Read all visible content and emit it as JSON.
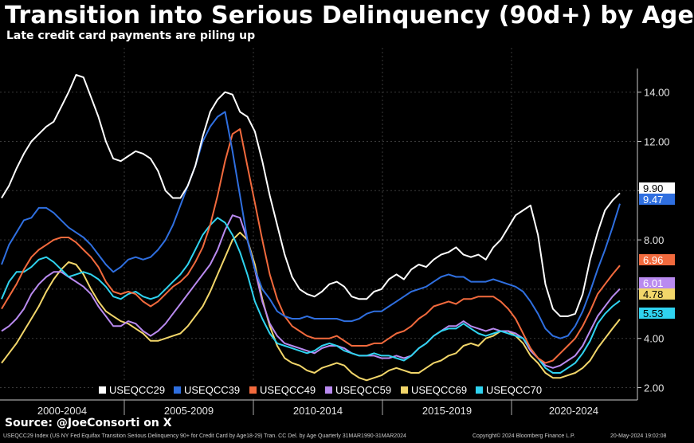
{
  "title": "Transition into Serious Delinquency (90d+) by Age",
  "subtitle": "Late credit card payments are piling up",
  "source": "Source: @JoeConsorti on X",
  "footer": {
    "left": "USEQCC29 Index (US NY Fed Equifax Transition Serious Delinquency 90+ for Credit Card by Age18-29) Tran. CC Del. by Age  Quarterly 31MAR1990-31MAR2024",
    "mid": "Copyright© 2024 Bloomberg Finance L.P.",
    "right": "20-May-2024 19:02:08"
  },
  "colors": {
    "background": "#000000",
    "grid": "#3a3a3a",
    "USEQCC29": "#ffffff",
    "USEQCC39": "#2f6fe0",
    "USEQCC49": "#f26a3d",
    "USEQCC59": "#b98af0",
    "USEQCC69": "#f2d66a",
    "USEQCC70": "#2fd3f0"
  },
  "chart_data": {
    "type": "line",
    "title": "Transition into Serious Delinquency (90d+) by Age",
    "subtitle": "Late credit card payments are piling up",
    "x_period_labels": [
      "2000-2004",
      "2005-2009",
      "2010-2014",
      "2015-2019",
      "2020-2024"
    ],
    "x_range": [
      "2000-Q1",
      "2024-Q1"
    ],
    "ylim": [
      1.5,
      15.8
    ],
    "y_ticks": [
      "2.00",
      "4.00",
      "6.00",
      "8.00",
      "10.00",
      "12.00",
      "14.00"
    ],
    "y_tick_values": [
      2,
      4,
      6,
      8,
      10,
      12,
      14
    ],
    "grid": true,
    "legend_position": "bottom",
    "last_values": [
      "9.90",
      "9.47",
      "6.96",
      "6.01",
      "5.53",
      "4.78"
    ],
    "series": [
      {
        "name": "USEQCC29",
        "last_label": "9.90",
        "x_quarter_step": 1,
        "values": [
          9.7,
          10.2,
          10.9,
          11.5,
          12.0,
          12.3,
          12.6,
          12.8,
          13.4,
          14.0,
          14.7,
          14.6,
          13.8,
          13.0,
          12.0,
          11.3,
          11.2,
          11.4,
          11.6,
          11.5,
          11.3,
          10.8,
          10.0,
          9.7,
          9.7,
          10.2,
          11.0,
          12.2,
          13.2,
          13.7,
          14.0,
          13.9,
          13.2,
          13.0,
          12.4,
          11.2,
          9.8,
          8.6,
          7.4,
          6.5,
          6.0,
          5.8,
          5.7,
          5.9,
          6.2,
          6.3,
          6.1,
          5.7,
          5.6,
          5.6,
          5.9,
          6.0,
          6.4,
          6.6,
          6.4,
          6.8,
          7.0,
          6.9,
          7.2,
          7.4,
          7.5,
          7.7,
          7.4,
          7.3,
          7.4,
          7.2,
          7.7,
          8.0,
          8.5,
          9.0,
          9.2,
          9.4,
          8.2,
          6.2,
          5.2,
          4.9,
          4.9,
          5.0,
          5.8,
          7.2,
          8.3,
          9.2,
          9.6,
          9.9
        ]
      },
      {
        "name": "USEQCC39",
        "last_label": "9.47",
        "x_quarter_step": 1,
        "values": [
          7.0,
          7.8,
          8.3,
          8.8,
          8.9,
          9.3,
          9.3,
          9.1,
          8.8,
          8.5,
          8.3,
          8.1,
          7.8,
          7.4,
          7.0,
          6.7,
          6.9,
          7.2,
          7.3,
          7.2,
          7.3,
          7.6,
          8.0,
          8.6,
          9.4,
          10.2,
          11.0,
          12.0,
          12.6,
          13.0,
          13.2,
          11.6,
          9.8,
          8.0,
          6.8,
          6.0,
          5.6,
          5.1,
          4.9,
          4.8,
          4.8,
          4.9,
          4.8,
          4.8,
          4.8,
          4.8,
          4.7,
          4.7,
          4.8,
          5.0,
          5.1,
          5.1,
          5.3,
          5.5,
          5.7,
          5.9,
          6.0,
          6.1,
          6.3,
          6.5,
          6.6,
          6.5,
          6.5,
          6.3,
          6.3,
          6.3,
          6.4,
          6.3,
          6.2,
          6.1,
          5.9,
          5.5,
          5.0,
          4.4,
          4.1,
          4.0,
          4.1,
          4.5,
          5.1,
          5.9,
          6.8,
          7.6,
          8.5,
          9.47
        ]
      },
      {
        "name": "USEQCC49",
        "last_label": "6.96",
        "x_quarter_step": 1,
        "values": [
          5.2,
          5.7,
          6.2,
          6.8,
          7.3,
          7.6,
          7.8,
          8.0,
          8.1,
          8.1,
          7.9,
          7.6,
          7.3,
          6.9,
          6.3,
          5.9,
          5.8,
          5.9,
          5.8,
          5.5,
          5.3,
          5.5,
          5.8,
          6.1,
          6.3,
          6.6,
          7.1,
          7.7,
          8.6,
          9.8,
          11.2,
          12.3,
          12.5,
          11.0,
          9.5,
          8.0,
          6.6,
          5.6,
          4.9,
          4.5,
          4.3,
          4.1,
          4.0,
          4.0,
          4.0,
          4.1,
          3.9,
          3.7,
          3.7,
          3.7,
          3.8,
          3.8,
          4.0,
          4.2,
          4.3,
          4.5,
          4.8,
          5.0,
          5.3,
          5.4,
          5.5,
          5.4,
          5.6,
          5.6,
          5.7,
          5.7,
          5.7,
          5.5,
          5.2,
          4.8,
          4.2,
          3.6,
          3.2,
          3.0,
          3.1,
          3.4,
          3.7,
          4.0,
          4.5,
          5.1,
          5.8,
          6.2,
          6.6,
          6.96
        ]
      },
      {
        "name": "USEQCC59",
        "last_label": "6.01",
        "x_quarter_step": 1,
        "values": [
          4.3,
          4.5,
          4.8,
          5.2,
          5.8,
          6.2,
          6.5,
          6.7,
          6.7,
          6.5,
          6.3,
          6.1,
          5.8,
          5.3,
          4.9,
          4.5,
          4.5,
          4.7,
          4.6,
          4.3,
          4.1,
          4.3,
          4.6,
          5.0,
          5.4,
          5.8,
          6.2,
          6.6,
          7.0,
          7.6,
          8.4,
          9.0,
          8.9,
          8.0,
          6.8,
          5.5,
          4.6,
          4.1,
          3.8,
          3.7,
          3.6,
          3.5,
          3.4,
          3.6,
          3.7,
          3.7,
          3.6,
          3.4,
          3.3,
          3.3,
          3.3,
          3.2,
          3.2,
          3.3,
          3.2,
          3.3,
          3.6,
          3.8,
          4.1,
          4.3,
          4.5,
          4.5,
          4.7,
          4.5,
          4.4,
          4.3,
          4.4,
          4.3,
          4.3,
          4.2,
          4.0,
          3.5,
          3.2,
          2.9,
          2.8,
          2.9,
          3.1,
          3.3,
          3.7,
          4.3,
          4.9,
          5.3,
          5.7,
          6.01
        ]
      },
      {
        "name": "USEQCC69",
        "last_label": "4.78",
        "x_quarter_step": 1,
        "values": [
          3.0,
          3.4,
          3.8,
          4.3,
          4.8,
          5.3,
          5.9,
          6.4,
          6.8,
          7.1,
          7.0,
          6.6,
          6.0,
          5.5,
          5.1,
          4.9,
          4.7,
          4.6,
          4.4,
          4.2,
          3.9,
          3.9,
          4.0,
          4.1,
          4.2,
          4.5,
          4.9,
          5.3,
          5.9,
          6.6,
          7.3,
          8.0,
          8.3,
          8.0,
          7.0,
          5.6,
          4.5,
          3.7,
          3.2,
          3.0,
          2.9,
          2.7,
          2.6,
          2.8,
          2.9,
          3.0,
          2.9,
          2.6,
          2.4,
          2.3,
          2.4,
          2.5,
          2.7,
          2.8,
          2.7,
          2.6,
          2.6,
          2.8,
          3.0,
          3.1,
          3.3,
          3.4,
          3.7,
          3.8,
          3.7,
          4.0,
          4.1,
          4.3,
          4.3,
          4.1,
          3.8,
          3.3,
          3.0,
          2.6,
          2.4,
          2.4,
          2.5,
          2.6,
          2.8,
          3.1,
          3.6,
          4.0,
          4.4,
          4.78
        ]
      },
      {
        "name": "USEQCC70",
        "last_label": "5.53",
        "x_quarter_step": 1,
        "values": [
          5.6,
          6.3,
          6.7,
          6.7,
          6.9,
          7.2,
          7.3,
          7.1,
          6.8,
          6.5,
          6.6,
          6.7,
          6.6,
          6.4,
          6.1,
          5.7,
          5.6,
          5.8,
          5.9,
          5.7,
          5.6,
          5.7,
          6.0,
          6.3,
          6.6,
          7.0,
          7.6,
          8.2,
          8.6,
          8.9,
          8.7,
          8.2,
          7.5,
          6.6,
          5.5,
          4.8,
          4.2,
          3.8,
          3.7,
          3.6,
          3.5,
          3.4,
          3.5,
          3.7,
          3.8,
          3.7,
          3.5,
          3.4,
          3.3,
          3.3,
          3.4,
          3.3,
          3.3,
          3.2,
          3.1,
          3.3,
          3.6,
          3.8,
          4.1,
          4.3,
          4.4,
          4.4,
          4.6,
          4.4,
          4.2,
          4.1,
          4.2,
          4.3,
          4.2,
          4.1,
          4.0,
          3.6,
          3.2,
          2.8,
          2.6,
          2.6,
          2.8,
          3.0,
          3.4,
          3.9,
          4.6,
          5.0,
          5.3,
          5.53
        ]
      }
    ]
  }
}
